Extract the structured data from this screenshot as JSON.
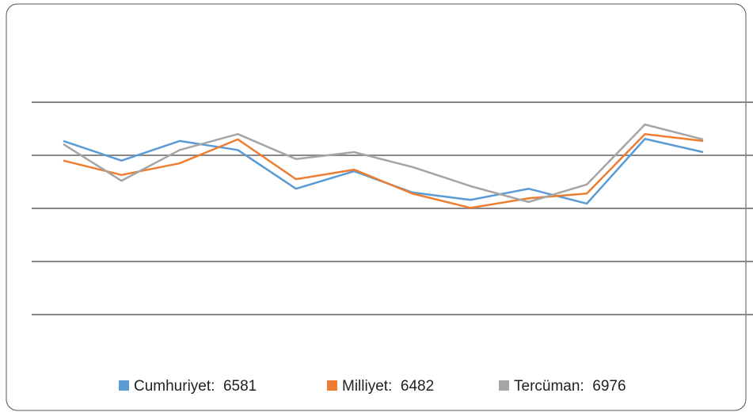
{
  "chart_data": {
    "type": "line",
    "categories": [
      null,
      null,
      null,
      null,
      null,
      null,
      null,
      null,
      null,
      null,
      null,
      null
    ],
    "series": [
      {
        "name": "Cumhuriyet:  6581",
        "color": "#5b9bd5",
        "values": [
          3.27,
          2.9,
          3.27,
          3.1,
          2.37,
          2.7,
          2.3,
          2.16,
          2.37,
          2.09,
          3.31,
          3.06
        ]
      },
      {
        "name": "Milliyet:  6482",
        "color": "#ed7d31",
        "values": [
          2.9,
          2.63,
          2.85,
          3.3,
          2.55,
          2.73,
          2.28,
          2.01,
          2.19,
          2.28,
          3.4,
          3.27
        ]
      },
      {
        "name": "Tercüman:  6976",
        "color": "#a5a5a5",
        "values": [
          3.21,
          2.52,
          3.1,
          3.4,
          2.93,
          3.06,
          2.78,
          2.42,
          2.12,
          2.45,
          3.58,
          3.3
        ]
      }
    ],
    "ylim": [
      0,
      4
    ],
    "yticks": [
      0,
      1,
      2,
      3,
      4
    ],
    "grid": true,
    "legend": "bottom"
  }
}
